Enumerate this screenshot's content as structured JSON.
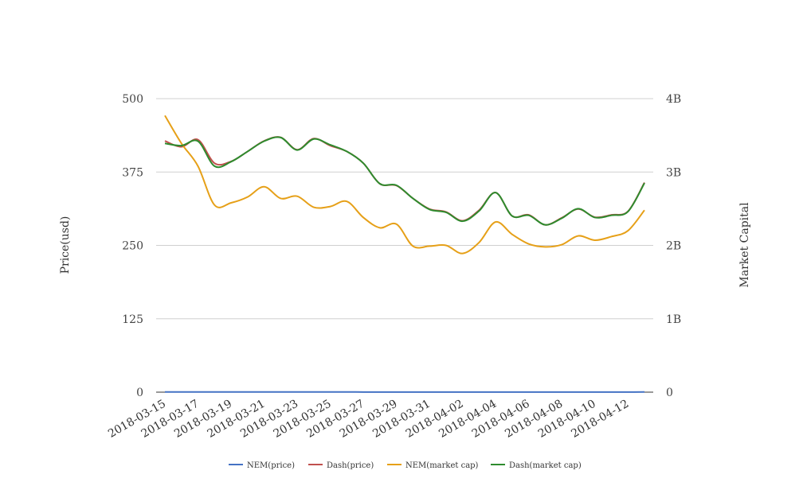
{
  "chart_data": {
    "type": "line",
    "ylabel_left": "Price(usd)",
    "ylabel_right": "Market Capital",
    "y_left_ticks": [
      "0",
      "125",
      "250",
      "375",
      "500"
    ],
    "y_right_ticks": [
      "0",
      "1B",
      "2B",
      "3B",
      "4B"
    ],
    "ylim_left": [
      0,
      500
    ],
    "ylim_right": [
      0,
      4000000000
    ],
    "x_tick_labels": [
      "2018-03-15",
      "2018-03-17",
      "2018-03-19",
      "2018-03-21",
      "2018-03-23",
      "2018-03-25",
      "2018-03-27",
      "2018-03-29",
      "2018-03-31",
      "2018-04-02",
      "2018-04-04",
      "2018-04-06",
      "2018-04-08",
      "2018-04-10",
      "2018-04-12"
    ],
    "x": [
      "2018-03-15",
      "2018-03-16",
      "2018-03-17",
      "2018-03-18",
      "2018-03-19",
      "2018-03-20",
      "2018-03-21",
      "2018-03-22",
      "2018-03-23",
      "2018-03-24",
      "2018-03-25",
      "2018-03-26",
      "2018-03-27",
      "2018-03-28",
      "2018-03-29",
      "2018-03-30",
      "2018-03-31",
      "2018-04-01",
      "2018-04-02",
      "2018-04-03",
      "2018-04-04",
      "2018-04-05",
      "2018-04-06",
      "2018-04-07",
      "2018-04-08",
      "2018-04-09",
      "2018-04-10",
      "2018-04-11",
      "2018-04-12",
      "2018-04-13"
    ],
    "grid": true,
    "legend_position": "bottom",
    "series": [
      {
        "name": "NEM(price)",
        "axis": "left",
        "color": "#4472c4",
        "values": [
          0.37,
          0.33,
          0.34,
          0.27,
          0.28,
          0.28,
          0.3,
          0.29,
          0.29,
          0.27,
          0.27,
          0.27,
          0.25,
          0.24,
          0.24,
          0.21,
          0.21,
          0.21,
          0.2,
          0.21,
          0.24,
          0.22,
          0.21,
          0.21,
          0.22,
          0.22,
          0.22,
          0.22,
          0.23,
          0.26
        ]
      },
      {
        "name": "Dash(price)",
        "axis": "left",
        "color": "#c0504d",
        "values": [
          428,
          418,
          430,
          390,
          393,
          410,
          428,
          434,
          413,
          432,
          420,
          410,
          390,
          355,
          352,
          330,
          312,
          307,
          292,
          310,
          340,
          300,
          302,
          285,
          297,
          312,
          298,
          302,
          308,
          357
        ]
      },
      {
        "name": "NEM(market cap)",
        "axis": "right",
        "color": "#e6a018",
        "values": [
          3770000000,
          3390000000,
          3080000000,
          2550000000,
          2580000000,
          2660000000,
          2800000000,
          2640000000,
          2670000000,
          2520000000,
          2530000000,
          2600000000,
          2380000000,
          2240000000,
          2290000000,
          1990000000,
          1990000000,
          2000000000,
          1890000000,
          2040000000,
          2320000000,
          2150000000,
          2020000000,
          1980000000,
          2010000000,
          2130000000,
          2070000000,
          2120000000,
          2200000000,
          2480000000
        ]
      },
      {
        "name": "Dash(market cap)",
        "axis": "right",
        "color": "#2e8b2e",
        "values": [
          3390000000,
          3360000000,
          3420000000,
          3080000000,
          3140000000,
          3280000000,
          3420000000,
          3470000000,
          3300000000,
          3450000000,
          3370000000,
          3280000000,
          3120000000,
          2840000000,
          2820000000,
          2640000000,
          2490000000,
          2450000000,
          2330000000,
          2470000000,
          2720000000,
          2400000000,
          2410000000,
          2280000000,
          2370000000,
          2500000000,
          2380000000,
          2410000000,
          2460000000,
          2850000000
        ]
      }
    ]
  }
}
